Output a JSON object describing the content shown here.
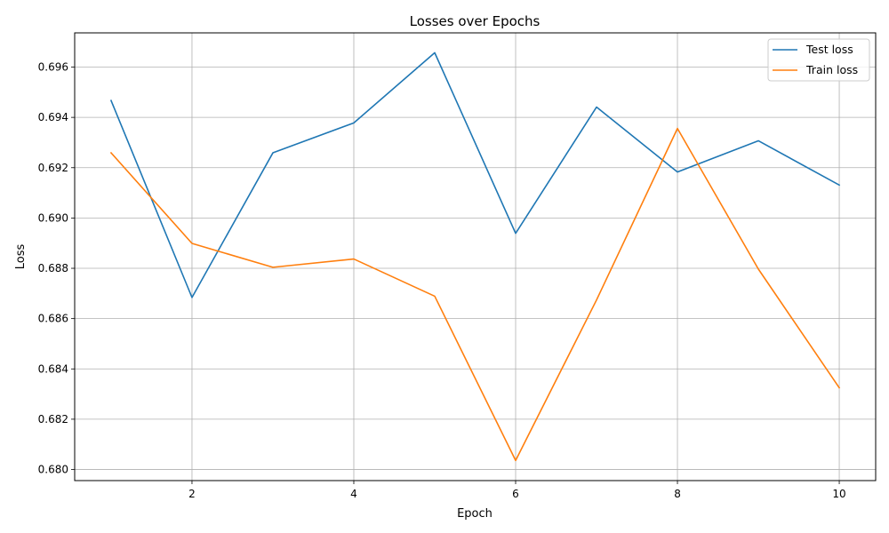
{
  "chart_data": {
    "type": "line",
    "title": "Losses over Epochs",
    "xlabel": "Epoch",
    "ylabel": "Loss",
    "x": [
      1,
      2,
      3,
      4,
      5,
      6,
      7,
      8,
      9,
      10
    ],
    "xlim": [
      0.55,
      10.45
    ],
    "ylim": [
      0.67956,
      0.69736
    ],
    "xticks": [
      2,
      4,
      6,
      8,
      10
    ],
    "xtick_labels": [
      "2",
      "4",
      "6",
      "8",
      "10"
    ],
    "yticks": [
      0.68,
      0.682,
      0.684,
      0.686,
      0.688,
      0.69,
      0.692,
      0.694,
      0.696
    ],
    "ytick_labels": [
      "0.680",
      "0.682",
      "0.684",
      "0.686",
      "0.688",
      "0.690",
      "0.692",
      "0.694",
      "0.696"
    ],
    "grid": true,
    "legend_position": "top-right",
    "series": [
      {
        "name": "Test loss",
        "color": "#1f77b4",
        "values": [
          0.69467,
          0.68684,
          0.69259,
          0.69378,
          0.69657,
          0.68939,
          0.69441,
          0.69183,
          0.69307,
          0.69131
        ]
      },
      {
        "name": "Train loss",
        "color": "#ff7f0e",
        "values": [
          0.69259,
          0.68899,
          0.68804,
          0.68837,
          0.68689,
          0.68036,
          0.68674,
          0.69356,
          0.68797,
          0.68325
        ]
      }
    ]
  }
}
